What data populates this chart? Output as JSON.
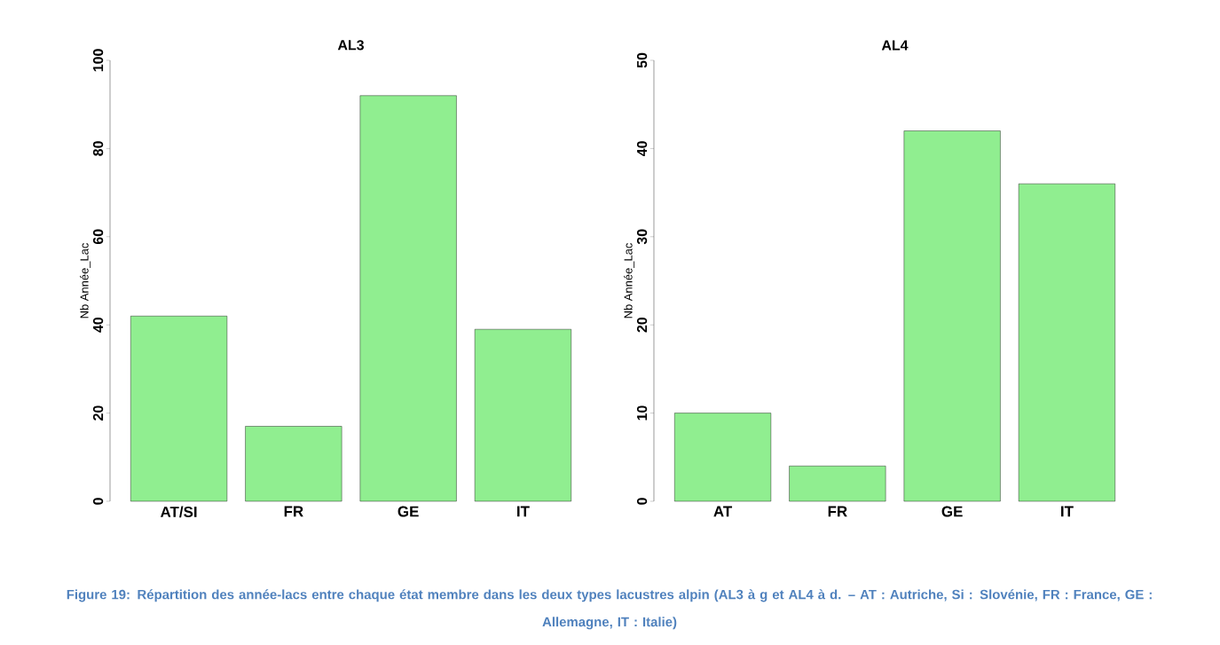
{
  "chart_data": [
    {
      "type": "bar",
      "title": "AL3",
      "ylabel": "Nb Année_Lac",
      "categories": [
        "AT/SI",
        "FR",
        "GE",
        "IT"
      ],
      "values": [
        42,
        17,
        92,
        39
      ],
      "color": "#90ee90",
      "ylim": [
        0,
        100
      ],
      "yticks": [
        0,
        20,
        40,
        60,
        80,
        100
      ]
    },
    {
      "type": "bar",
      "title": "AL4",
      "ylabel": "Nb Année_Lac",
      "categories": [
        "AT",
        "FR",
        "GE",
        "IT"
      ],
      "values": [
        10,
        4,
        42,
        36
      ],
      "color": "#90ee90",
      "ylim": [
        0,
        50
      ],
      "yticks": [
        0,
        10,
        20,
        30,
        40,
        50
      ],
      "annotations": [
        "Figure 19: Répartition des année-lacs entre chaque état membre dans les deux types lacustres alpin (AL3 à g et AL4 à d. – AT : Autriche, Si : Slovénie, FR : France, GE : Allemagne, IT : Italie)"
      ]
    }
  ]
}
